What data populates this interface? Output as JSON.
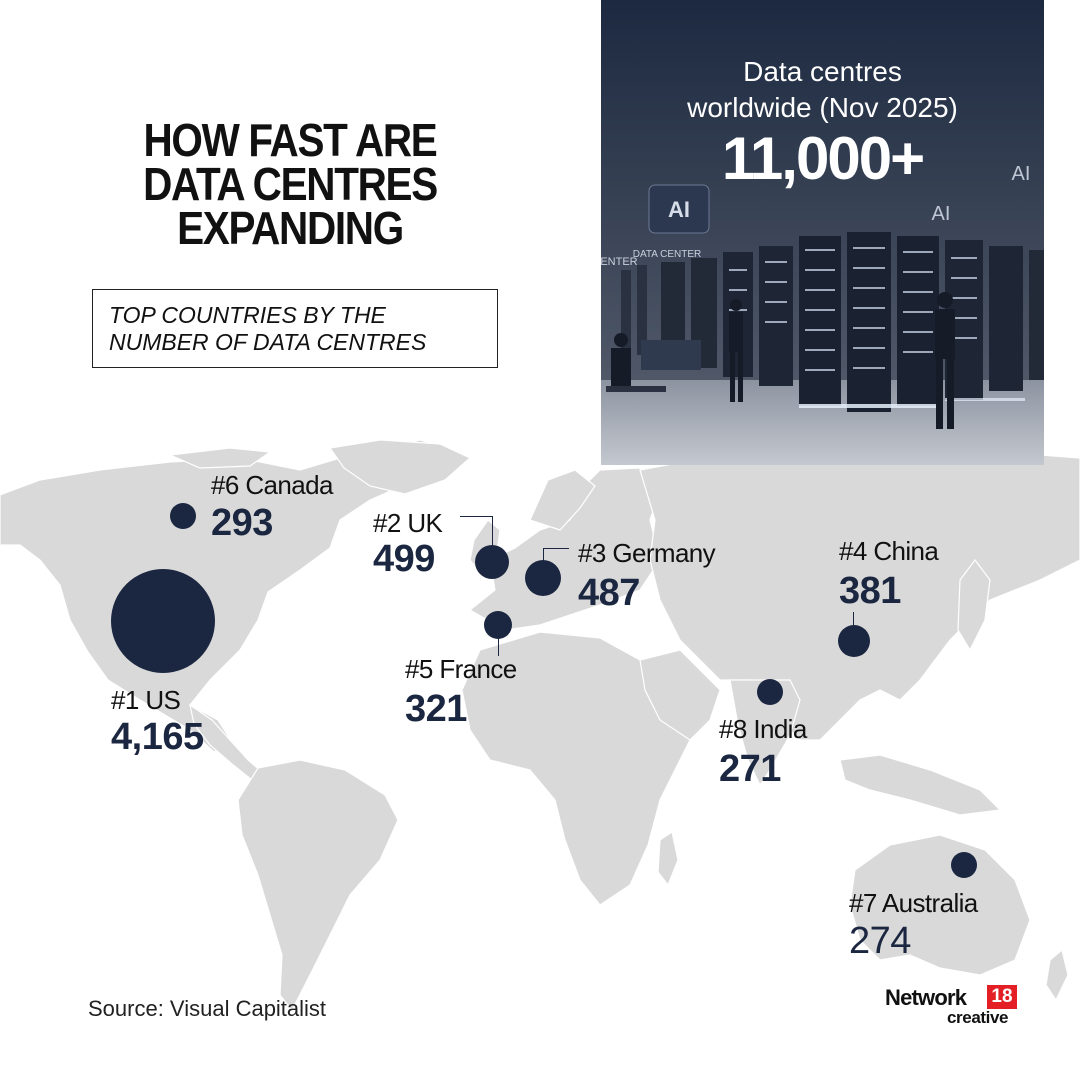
{
  "title": {
    "line1": "HOW FAST ARE",
    "line2": "DATA CENTRES",
    "line3": "EXPANDING"
  },
  "subtitle": {
    "line1": "TOP COUNTRIES BY THE",
    "line2": "NUMBER OF DATA CENTRES"
  },
  "hero": {
    "caption_line1": "Data centres",
    "caption_line2": "worldwide (Nov 2025)",
    "figure": "11,000+",
    "image_signs": [
      "AI",
      "DATA CENTER",
      "AI",
      "AI",
      "CENTER"
    ]
  },
  "countries": [
    {
      "rank": "#1",
      "name": "US",
      "label": "#1 US",
      "count": "4,165",
      "value": 4165
    },
    {
      "rank": "#2",
      "name": "UK",
      "label": "#2 UK",
      "count": "499",
      "value": 499
    },
    {
      "rank": "#3",
      "name": "Germany",
      "label": "#3 Germany",
      "count": "487",
      "value": 487
    },
    {
      "rank": "#4",
      "name": "China",
      "label": "#4 China",
      "count": "381",
      "value": 381
    },
    {
      "rank": "#5",
      "name": "France",
      "label": "#5 France",
      "count": "321",
      "value": 321
    },
    {
      "rank": "#6",
      "name": "Canada",
      "label": "#6 Canada",
      "count": "293",
      "value": 293
    },
    {
      "rank": "#7",
      "name": "Australia",
      "label": "#7 Australia",
      "count": "274",
      "value": 274
    },
    {
      "rank": "#8",
      "name": "India",
      "label": "#8 India",
      "count": "271",
      "value": 271
    }
  ],
  "source": "Source: Visual Capitalist",
  "brand": {
    "name": "Network",
    "badge": "18",
    "sub": "creative",
    "badge_color": "#e31e24"
  },
  "colors": {
    "marker": "#1b2740",
    "land": "#d9d9d9",
    "hero_background": "#1a2538"
  }
}
